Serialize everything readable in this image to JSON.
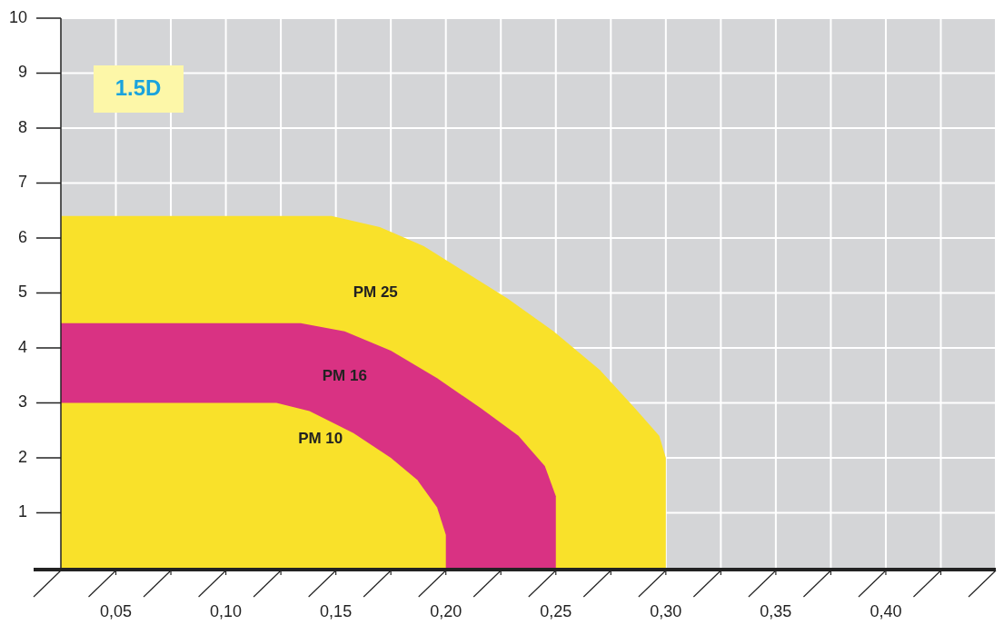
{
  "chart_data": {
    "type": "area",
    "xlim": [
      0.025,
      0.45
    ],
    "ylim": [
      0,
      10
    ],
    "xticks": [
      {
        "value": 0.05,
        "label": "0,05"
      },
      {
        "value": 0.075,
        "label": null
      },
      {
        "value": 0.1,
        "label": "0,10"
      },
      {
        "value": 0.125,
        "label": null
      },
      {
        "value": 0.15,
        "label": "0,15"
      },
      {
        "value": 0.175,
        "label": null
      },
      {
        "value": 0.2,
        "label": "0,20"
      },
      {
        "value": 0.225,
        "label": null
      },
      {
        "value": 0.25,
        "label": "0,25"
      },
      {
        "value": 0.275,
        "label": null
      },
      {
        "value": 0.3,
        "label": "0,30"
      },
      {
        "value": 0.325,
        "label": null
      },
      {
        "value": 0.35,
        "label": "0,35"
      },
      {
        "value": 0.375,
        "label": null
      },
      {
        "value": 0.4,
        "label": "0,40"
      },
      {
        "value": 0.425,
        "label": null
      }
    ],
    "yticks": [
      1,
      2,
      3,
      4,
      5,
      6,
      7,
      8,
      9,
      10
    ],
    "grid": true,
    "annotations": [
      "1.5D"
    ],
    "series": [
      {
        "name": "PM 25",
        "color": "#f9e12a",
        "x": [
          0.025,
          0.148,
          0.17,
          0.19,
          0.21,
          0.228,
          0.249,
          0.27,
          0.286,
          0.297,
          0.3,
          0.3
        ],
        "values": [
          6.4,
          6.4,
          6.2,
          5.85,
          5.35,
          4.9,
          4.3,
          3.6,
          2.9,
          2.4,
          2.0,
          0
        ]
      },
      {
        "name": "PM 16",
        "color": "#d93283",
        "x": [
          0.025,
          0.134,
          0.154,
          0.175,
          0.196,
          0.216,
          0.233,
          0.245,
          0.25,
          0.25
        ],
        "values": [
          4.45,
          4.45,
          4.3,
          3.95,
          3.45,
          2.9,
          2.4,
          1.85,
          1.3,
          0
        ]
      },
      {
        "name": "PM 10",
        "color": "#f9e12a",
        "x": [
          0.025,
          0.123,
          0.138,
          0.158,
          0.175,
          0.187,
          0.196,
          0.2,
          0.2
        ],
        "values": [
          3.0,
          3.0,
          2.85,
          2.45,
          2.0,
          1.6,
          1.1,
          0.6,
          0
        ]
      }
    ]
  }
}
